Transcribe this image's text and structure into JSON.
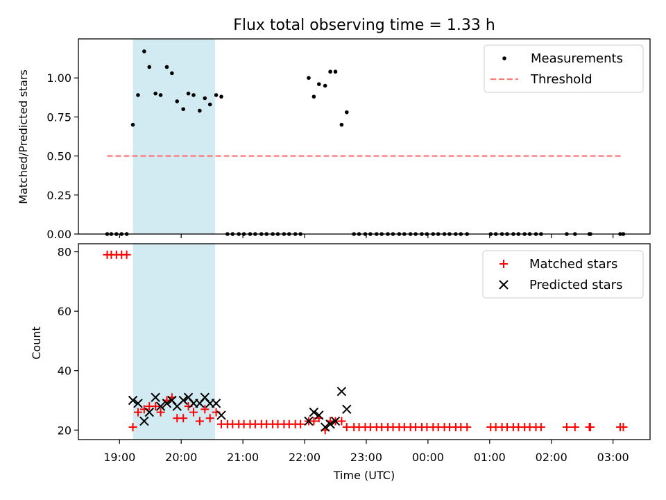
{
  "chart_data": {
    "title": "Flux total observing time = 1.33 h",
    "xlabel": "Time (UTC)",
    "x_tick_labels": [
      "19:00",
      "20:00",
      "21:00",
      "22:00",
      "23:00",
      "00:00",
      "01:00",
      "02:00",
      "03:00"
    ],
    "highlight_span": {
      "start": "19:13",
      "end": "20:33",
      "color": "#add8e6"
    },
    "top": {
      "type": "scatter",
      "ylabel": "Matched/Predicted stars",
      "ylim": [
        0,
        1.25
      ],
      "y_ticks": [
        "0.00",
        "0.25",
        "0.50",
        "0.75",
        "1.00"
      ],
      "legend": {
        "position": "top-right",
        "entries": [
          "Measurements",
          "Threshold"
        ]
      },
      "threshold": {
        "value": 0.5,
        "x_start": "18:48",
        "x_end": "03:10",
        "color": "#ff7777"
      },
      "series": [
        {
          "name": "Measurements",
          "color": "#000000",
          "points": [
            [
              "18:48",
              0
            ],
            [
              "18:52",
              0
            ],
            [
              "18:57",
              0
            ],
            [
              "19:02",
              0
            ],
            [
              "19:07",
              0
            ],
            [
              "19:13",
              0.7
            ],
            [
              "19:18",
              0.89
            ],
            [
              "19:24",
              1.17
            ],
            [
              "19:29",
              1.07
            ],
            [
              "19:35",
              0.9
            ],
            [
              "19:40",
              0.89
            ],
            [
              "19:46",
              1.07
            ],
            [
              "19:51",
              1.03
            ],
            [
              "19:56",
              0.85
            ],
            [
              "20:02",
              0.8
            ],
            [
              "20:07",
              0.9
            ],
            [
              "20:12",
              0.89
            ],
            [
              "20:18",
              0.79
            ],
            [
              "20:23",
              0.87
            ],
            [
              "20:28",
              0.83
            ],
            [
              "20:34",
              0.89
            ],
            [
              "20:39",
              0.88
            ],
            [
              "20:45",
              0
            ],
            [
              "20:50",
              0
            ],
            [
              "20:56",
              0
            ],
            [
              "21:01",
              0
            ],
            [
              "21:07",
              0
            ],
            [
              "21:12",
              0
            ],
            [
              "21:18",
              0
            ],
            [
              "21:23",
              0
            ],
            [
              "21:29",
              0
            ],
            [
              "21:34",
              0
            ],
            [
              "21:40",
              0
            ],
            [
              "21:45",
              0
            ],
            [
              "21:51",
              0
            ],
            [
              "21:56",
              0
            ],
            [
              "22:04",
              1.0
            ],
            [
              "22:09",
              0.88
            ],
            [
              "22:14",
              0.96
            ],
            [
              "22:20",
              0.95
            ],
            [
              "22:25",
              1.04
            ],
            [
              "22:30",
              1.04
            ],
            [
              "22:36",
              0.7
            ],
            [
              "22:41",
              0.78
            ],
            [
              "22:48",
              0
            ],
            [
              "22:53",
              0
            ],
            [
              "22:59",
              0
            ],
            [
              "23:04",
              0
            ],
            [
              "23:10",
              0
            ],
            [
              "23:15",
              0
            ],
            [
              "23:21",
              0
            ],
            [
              "23:26",
              0
            ],
            [
              "23:32",
              0
            ],
            [
              "23:37",
              0
            ],
            [
              "23:43",
              0
            ],
            [
              "23:48",
              0
            ],
            [
              "23:54",
              0
            ],
            [
              "23:59",
              0
            ],
            [
              "00:05",
              0
            ],
            [
              "00:10",
              0
            ],
            [
              "00:16",
              0
            ],
            [
              "00:21",
              0
            ],
            [
              "00:27",
              0
            ],
            [
              "00:32",
              0
            ],
            [
              "00:38",
              0
            ],
            [
              "01:01",
              0
            ],
            [
              "01:06",
              0
            ],
            [
              "01:12",
              0
            ],
            [
              "01:17",
              0
            ],
            [
              "01:23",
              0
            ],
            [
              "01:28",
              0
            ],
            [
              "01:34",
              0
            ],
            [
              "01:39",
              0
            ],
            [
              "01:45",
              0
            ],
            [
              "01:50",
              0
            ],
            [
              "02:15",
              0
            ],
            [
              "02:23",
              0
            ],
            [
              "02:37",
              0
            ],
            [
              "02:38",
              0
            ],
            [
              "03:07",
              0
            ],
            [
              "03:10",
              0
            ]
          ]
        }
      ]
    },
    "bottom": {
      "type": "scatter",
      "ylabel": "Count",
      "ylim": [
        16.8,
        82.7
      ],
      "y_ticks": [
        "20",
        "40",
        "60",
        "80"
      ],
      "legend": {
        "position": "top-right",
        "entries": [
          "Matched stars",
          "Predicted stars"
        ]
      },
      "series": [
        {
          "name": "Matched stars",
          "color": "#ff0000",
          "points": [
            [
              "18:48",
              79
            ],
            [
              "18:52",
              79
            ],
            [
              "18:57",
              79
            ],
            [
              "19:02",
              79
            ],
            [
              "19:07",
              79
            ],
            [
              "19:13",
              21
            ],
            [
              "19:18",
              26
            ],
            [
              "19:24",
              27
            ],
            [
              "19:29",
              28
            ],
            [
              "19:35",
              28
            ],
            [
              "19:40",
              26
            ],
            [
              "19:46",
              30
            ],
            [
              "19:51",
              31
            ],
            [
              "19:56",
              24
            ],
            [
              "20:02",
              24
            ],
            [
              "20:07",
              28
            ],
            [
              "20:12",
              26
            ],
            [
              "20:18",
              23
            ],
            [
              "20:23",
              27
            ],
            [
              "20:28",
              24
            ],
            [
              "20:34",
              26
            ],
            [
              "20:39",
              22
            ],
            [
              "20:45",
              22
            ],
            [
              "20:50",
              22
            ],
            [
              "20:56",
              22
            ],
            [
              "21:01",
              22
            ],
            [
              "21:07",
              22
            ],
            [
              "21:12",
              22
            ],
            [
              "21:18",
              22
            ],
            [
              "21:23",
              22
            ],
            [
              "21:29",
              22
            ],
            [
              "21:34",
              22
            ],
            [
              "21:40",
              22
            ],
            [
              "21:45",
              22
            ],
            [
              "21:51",
              22
            ],
            [
              "21:56",
              22
            ],
            [
              "22:04",
              23
            ],
            [
              "22:09",
              23
            ],
            [
              "22:14",
              24
            ],
            [
              "22:20",
              20
            ],
            [
              "22:25",
              23
            ],
            [
              "22:30",
              23
            ],
            [
              "22:36",
              23
            ],
            [
              "22:41",
              21
            ],
            [
              "22:48",
              21
            ],
            [
              "22:53",
              21
            ],
            [
              "22:59",
              21
            ],
            [
              "23:04",
              21
            ],
            [
              "23:10",
              21
            ],
            [
              "23:15",
              21
            ],
            [
              "23:21",
              21
            ],
            [
              "23:26",
              21
            ],
            [
              "23:32",
              21
            ],
            [
              "23:37",
              21
            ],
            [
              "23:43",
              21
            ],
            [
              "23:48",
              21
            ],
            [
              "23:54",
              21
            ],
            [
              "23:59",
              21
            ],
            [
              "00:05",
              21
            ],
            [
              "00:10",
              21
            ],
            [
              "00:16",
              21
            ],
            [
              "00:21",
              21
            ],
            [
              "00:27",
              21
            ],
            [
              "00:32",
              21
            ],
            [
              "00:38",
              21
            ],
            [
              "01:01",
              21
            ],
            [
              "01:06",
              21
            ],
            [
              "01:12",
              21
            ],
            [
              "01:17",
              21
            ],
            [
              "01:23",
              21
            ],
            [
              "01:28",
              21
            ],
            [
              "01:34",
              21
            ],
            [
              "01:39",
              21
            ],
            [
              "01:45",
              21
            ],
            [
              "01:50",
              21
            ],
            [
              "02:15",
              21
            ],
            [
              "02:23",
              21
            ],
            [
              "02:37",
              21
            ],
            [
              "02:38",
              21
            ],
            [
              "03:07",
              21
            ],
            [
              "03:10",
              21
            ]
          ]
        },
        {
          "name": "Predicted stars",
          "color": "#000000",
          "points": [
            [
              "19:13",
              30
            ],
            [
              "19:18",
              29
            ],
            [
              "19:24",
              23
            ],
            [
              "19:29",
              26
            ],
            [
              "19:35",
              31
            ],
            [
              "19:40",
              28
            ],
            [
              "19:46",
              29
            ],
            [
              "19:51",
              30
            ],
            [
              "19:56",
              28
            ],
            [
              "20:02",
              30
            ],
            [
              "20:07",
              31
            ],
            [
              "20:12",
              29
            ],
            [
              "20:18",
              29
            ],
            [
              "20:23",
              31
            ],
            [
              "20:28",
              29
            ],
            [
              "20:34",
              29
            ],
            [
              "20:39",
              25
            ],
            [
              "22:04",
              23
            ],
            [
              "22:09",
              26
            ],
            [
              "22:14",
              25
            ],
            [
              "22:20",
              21
            ],
            [
              "22:25",
              22
            ],
            [
              "22:30",
              23
            ],
            [
              "22:36",
              33
            ],
            [
              "22:41",
              27
            ]
          ]
        }
      ]
    }
  }
}
